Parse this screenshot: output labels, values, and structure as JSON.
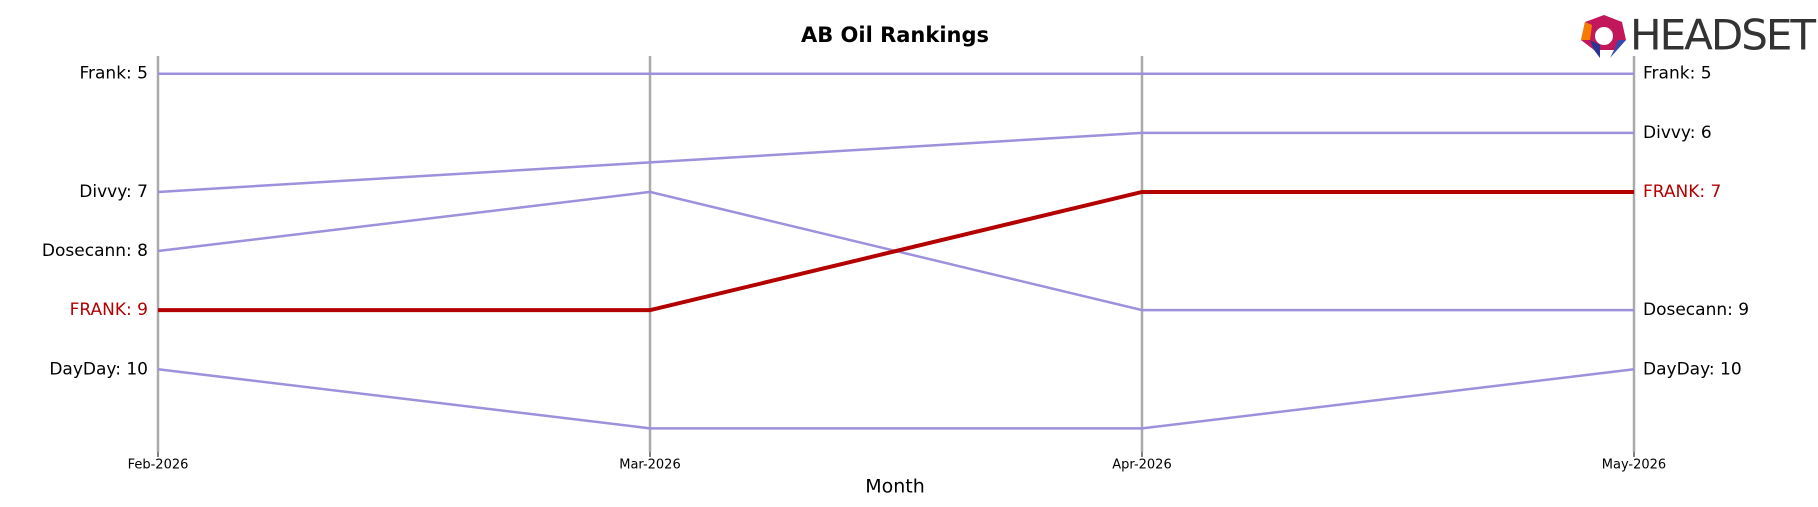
{
  "chart_data": {
    "type": "bump",
    "title": "AB Oil Rankings",
    "xlabel": "Month",
    "logo": "HEADSET",
    "categories": [
      "Feb-2026",
      "Mar-2026",
      "Apr-2026",
      "May-2026"
    ],
    "ylim": [
      11.4,
      4.7
    ],
    "series": [
      {
        "color": "#9d90dc",
        "values": [
          5,
          5,
          5,
          5
        ],
        "start_label": "Frank: 5",
        "end_label": "Frank: 5"
      },
      {
        "color": "#9d90dc",
        "values": [
          7,
          6.5,
          6,
          6
        ],
        "start_label": "Divvy: 7",
        "end_label": "Divvy: 6"
      },
      {
        "color": "#9d90dc",
        "values": [
          8,
          7,
          9,
          9
        ],
        "start_label": "Dosecann: 8",
        "end_label": "Dosecann: 9"
      },
      {
        "color": "#9d90dc",
        "values": [
          10,
          11,
          11,
          10
        ],
        "start_label": "DayDay: 10",
        "end_label": "DayDay: 10"
      },
      {
        "color": "#b30000",
        "highlight": true,
        "values": [
          9,
          9,
          7,
          7
        ],
        "start_label": "FRANK: 9",
        "end_label": "FRANK: 7"
      }
    ]
  }
}
